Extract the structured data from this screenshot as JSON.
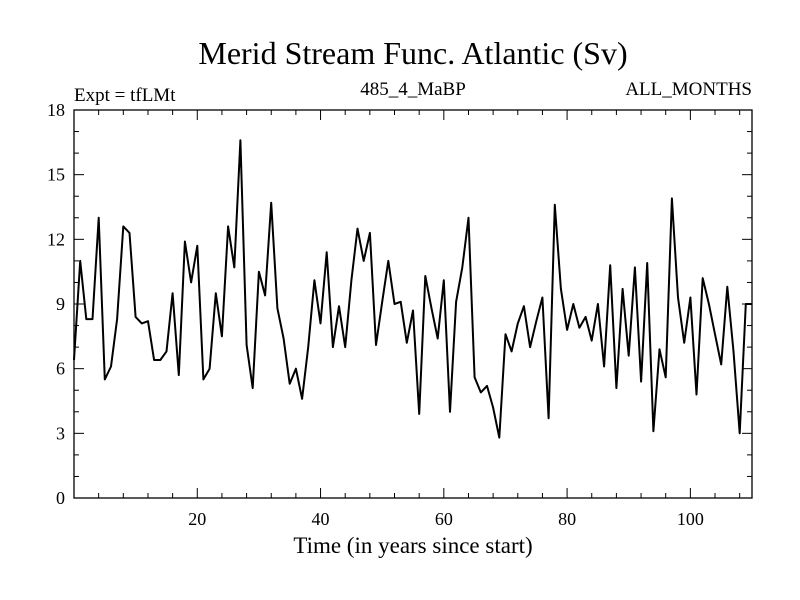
{
  "chart_data": {
    "type": "line",
    "title": "Merid Stream Func. Atlantic (Sv)",
    "subtitle_left": "Expt = tfLMt",
    "subtitle_center": "485_4_MaBP",
    "subtitle_right": "ALL_MONTHS",
    "xlabel": "Time (in years since start)",
    "ylabel": "",
    "xlim": [
      0,
      110
    ],
    "ylim": [
      0,
      18
    ],
    "xticks": [
      20,
      40,
      60,
      80,
      100
    ],
    "yticks": [
      0,
      3,
      6,
      9,
      12,
      15,
      18
    ],
    "grid": false,
    "series": [
      {
        "name": "Merid Stream Func. Atlantic",
        "x": [
          0,
          1,
          2,
          3,
          4,
          5,
          6,
          7,
          8,
          9,
          10,
          11,
          12,
          13,
          14,
          15,
          16,
          17,
          18,
          19,
          20,
          21,
          22,
          23,
          24,
          25,
          26,
          27,
          28,
          29,
          30,
          31,
          32,
          33,
          34,
          35,
          36,
          37,
          38,
          39,
          40,
          41,
          42,
          43,
          44,
          45,
          46,
          47,
          48,
          49,
          50,
          51,
          52,
          53,
          54,
          55,
          56,
          57,
          58,
          59,
          60,
          61,
          62,
          63,
          64,
          65,
          66,
          67,
          68,
          69,
          70,
          71,
          72,
          73,
          74,
          75,
          76,
          77,
          78,
          79,
          80,
          81,
          82,
          83,
          84,
          85,
          86,
          87,
          88,
          89,
          90,
          91,
          92,
          93,
          94,
          95,
          96,
          97,
          98,
          99,
          100,
          101,
          102,
          103,
          104,
          105,
          106,
          107,
          108,
          109,
          110
        ],
        "y": [
          6.4,
          11.0,
          8.3,
          8.3,
          13.0,
          5.5,
          6.1,
          8.3,
          12.6,
          12.3,
          8.4,
          8.1,
          8.2,
          6.4,
          6.4,
          6.8,
          9.5,
          5.7,
          11.9,
          10.0,
          11.7,
          5.5,
          6.0,
          9.5,
          7.5,
          12.6,
          10.7,
          16.6,
          7.1,
          5.1,
          10.5,
          9.4,
          13.7,
          8.8,
          7.4,
          5.3,
          6.0,
          4.6,
          7.0,
          10.1,
          8.1,
          11.4,
          7.0,
          8.9,
          7.0,
          10.1,
          12.5,
          11.0,
          12.3,
          7.1,
          9.1,
          11.0,
          9.0,
          9.1,
          7.2,
          8.7,
          3.9,
          10.3,
          8.8,
          7.4,
          10.1,
          4.0,
          9.1,
          10.7,
          13.0,
          5.6,
          4.9,
          5.2,
          4.2,
          2.8,
          7.6,
          6.8,
          8.1,
          8.9,
          7.0,
          8.2,
          9.3,
          3.7,
          13.6,
          9.7,
          7.8,
          9.0,
          7.9,
          8.4,
          7.3,
          9.0,
          6.1,
          10.8,
          5.1,
          9.7,
          6.6,
          10.7,
          5.4,
          10.9,
          3.1,
          6.9,
          5.6,
          13.9,
          9.3,
          7.2,
          9.3,
          4.8,
          10.2,
          9.0,
          7.6,
          6.2,
          9.8,
          6.8,
          3.0,
          9.0,
          9.0
        ]
      }
    ]
  }
}
